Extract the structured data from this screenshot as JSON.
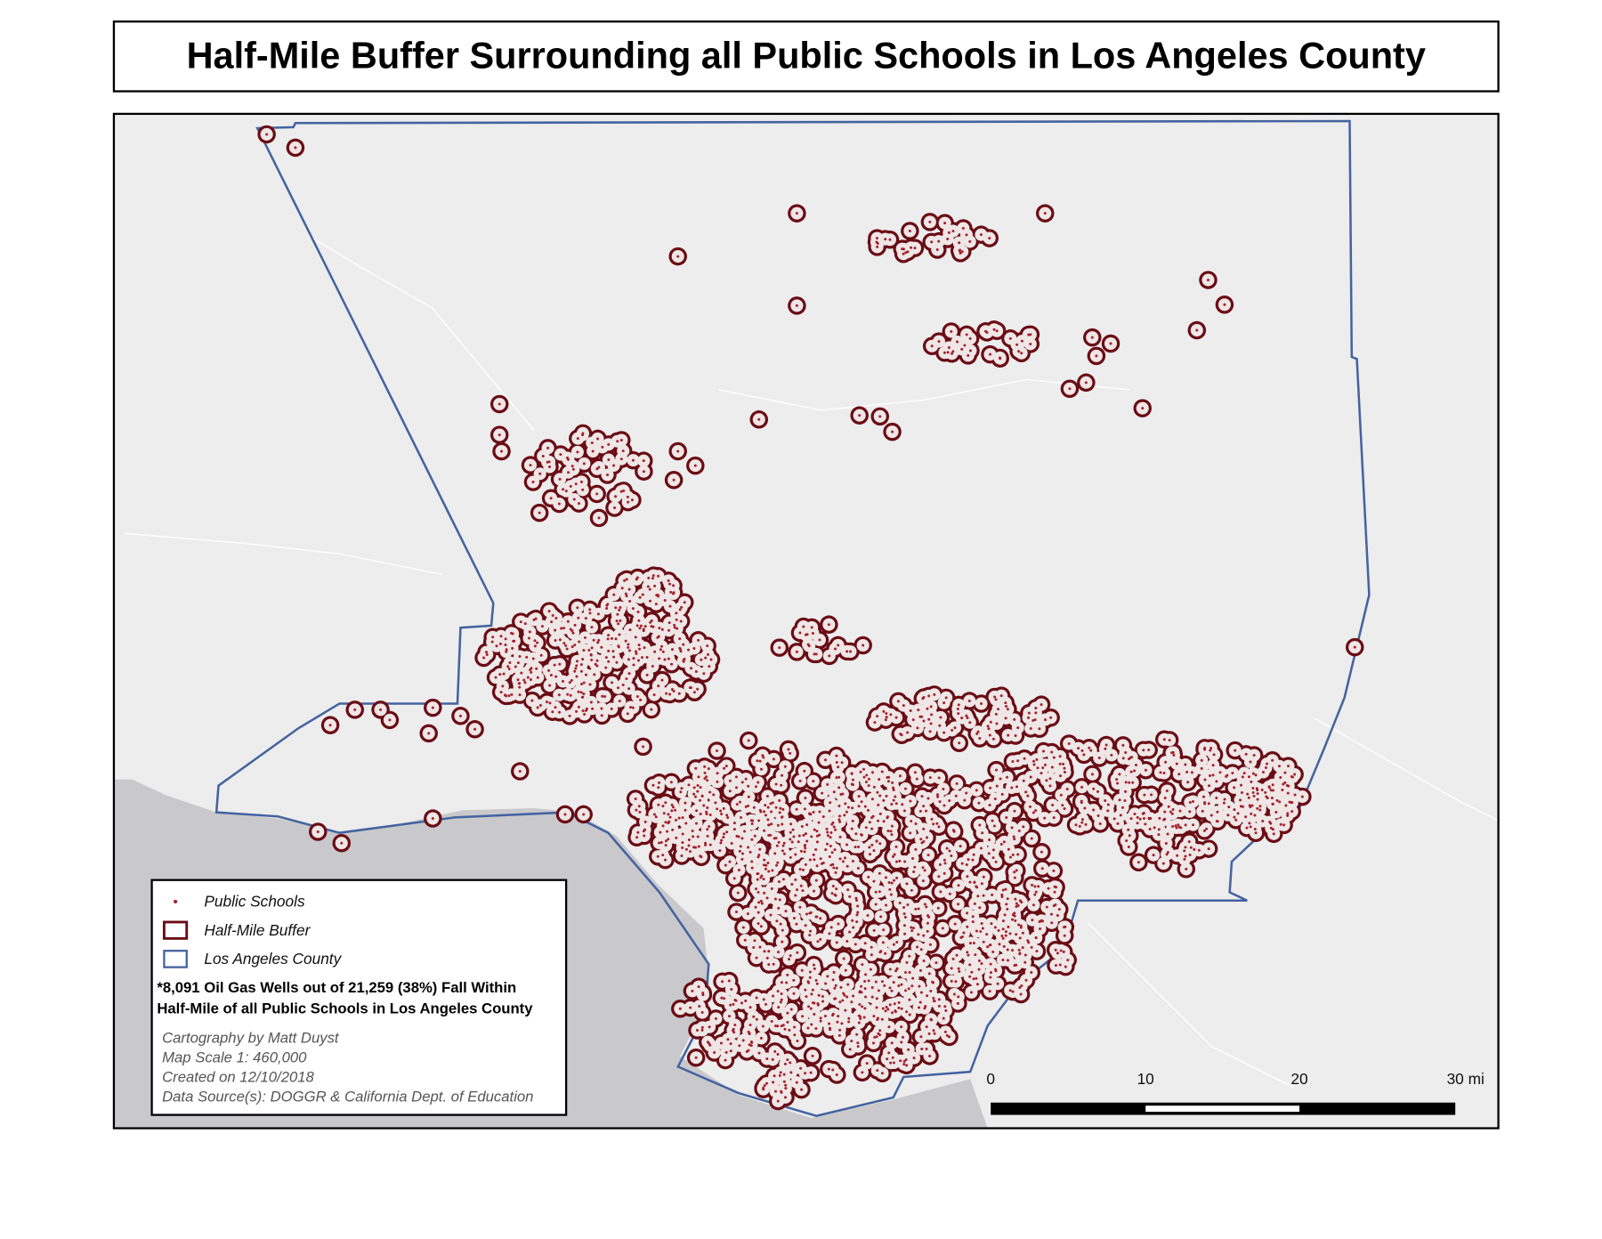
{
  "title": "Half-Mile Buffer Surrounding all Public Schools in Los Angeles County",
  "legend": {
    "items": [
      "Public Schools",
      "Half-Mile Buffer",
      "Los Angeles County"
    ],
    "note": [
      "*8,091 Oil Gas Wells out of 21,259 (38%) Fall Within",
      "Half-Mile of all Public Schools in Los Angeles County"
    ],
    "credits": [
      "Cartography by Matt Duyst",
      "Map Scale 1: 460,000",
      "Created on 12/10/2018",
      "Data Source(s): DOGGR & California Dept. of Education"
    ]
  },
  "scale_bar": {
    "labels": [
      "0",
      "10",
      "20",
      "30 mi"
    ]
  }
}
